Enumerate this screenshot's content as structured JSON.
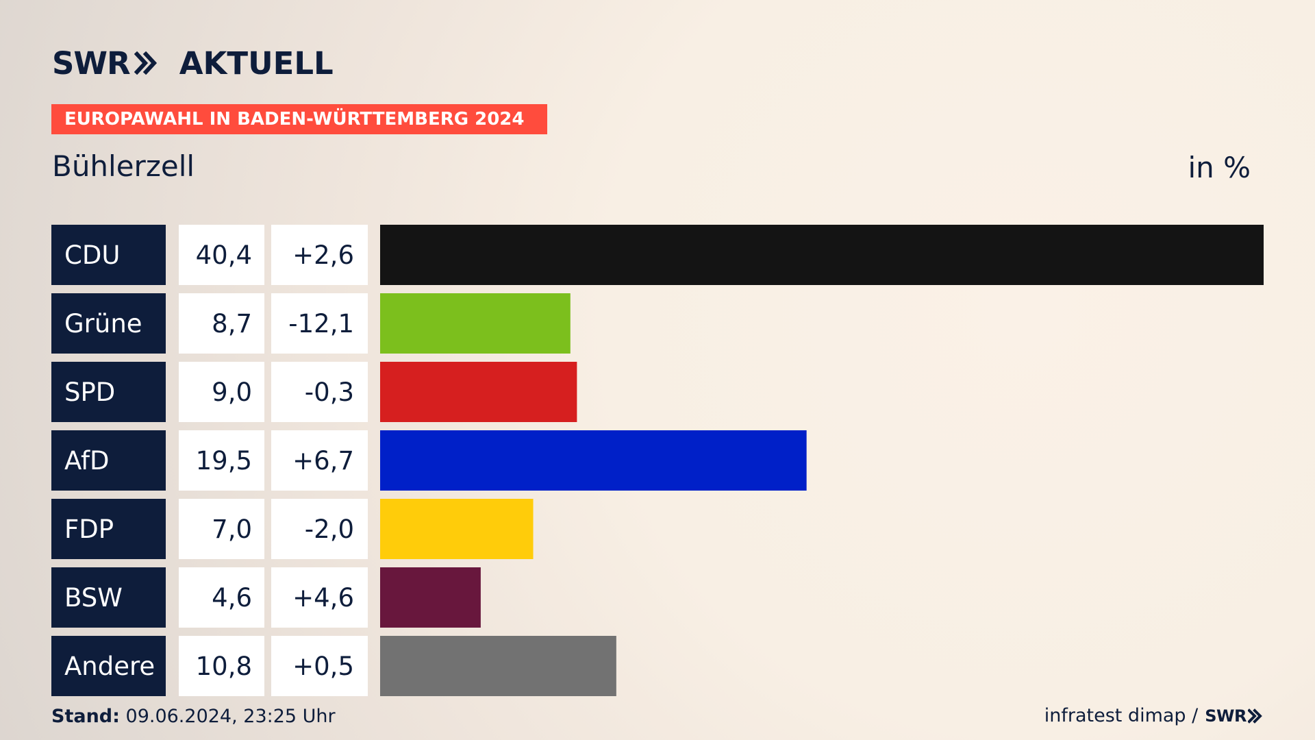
{
  "header": {
    "logo_brand": "SWR",
    "logo_text": "AKTUELL",
    "banner": "EUROPAWAHL IN BADEN-WÜRTTEMBERG 2024",
    "region": "Bühlerzell",
    "unit": "in %"
  },
  "footer": {
    "stand_label": "Stand:",
    "stand_value": "09.06.2024, 23:25 Uhr",
    "source": "infratest dimap /",
    "source_logo": "SWR"
  },
  "colors": {
    "brand_navy": "#0e1d3b",
    "banner_red": "#ff4c3d",
    "label_bg": "#0e1d3b",
    "cell_bg": "#ffffff"
  },
  "chart_data": {
    "type": "bar",
    "orientation": "horizontal",
    "xlim": [
      0,
      40.4
    ],
    "categories": [
      "CDU",
      "Grüne",
      "SPD",
      "AfD",
      "FDP",
      "BSW",
      "Andere"
    ],
    "values": [
      40.4,
      8.7,
      9.0,
      19.5,
      7.0,
      4.6,
      10.8
    ],
    "value_labels": [
      "40,4",
      "8,7",
      "9,0",
      "19,5",
      "7,0",
      "4,6",
      "10,8"
    ],
    "change_labels": [
      "+2,6",
      "-12,1",
      "-0,3",
      "+6,7",
      "-2,0",
      "+4,6",
      "+0,5"
    ],
    "colors": [
      "#141414",
      "#7cbf1d",
      "#d61f1f",
      "#0020c8",
      "#ffcc0a",
      "#68173d",
      "#727272"
    ]
  }
}
